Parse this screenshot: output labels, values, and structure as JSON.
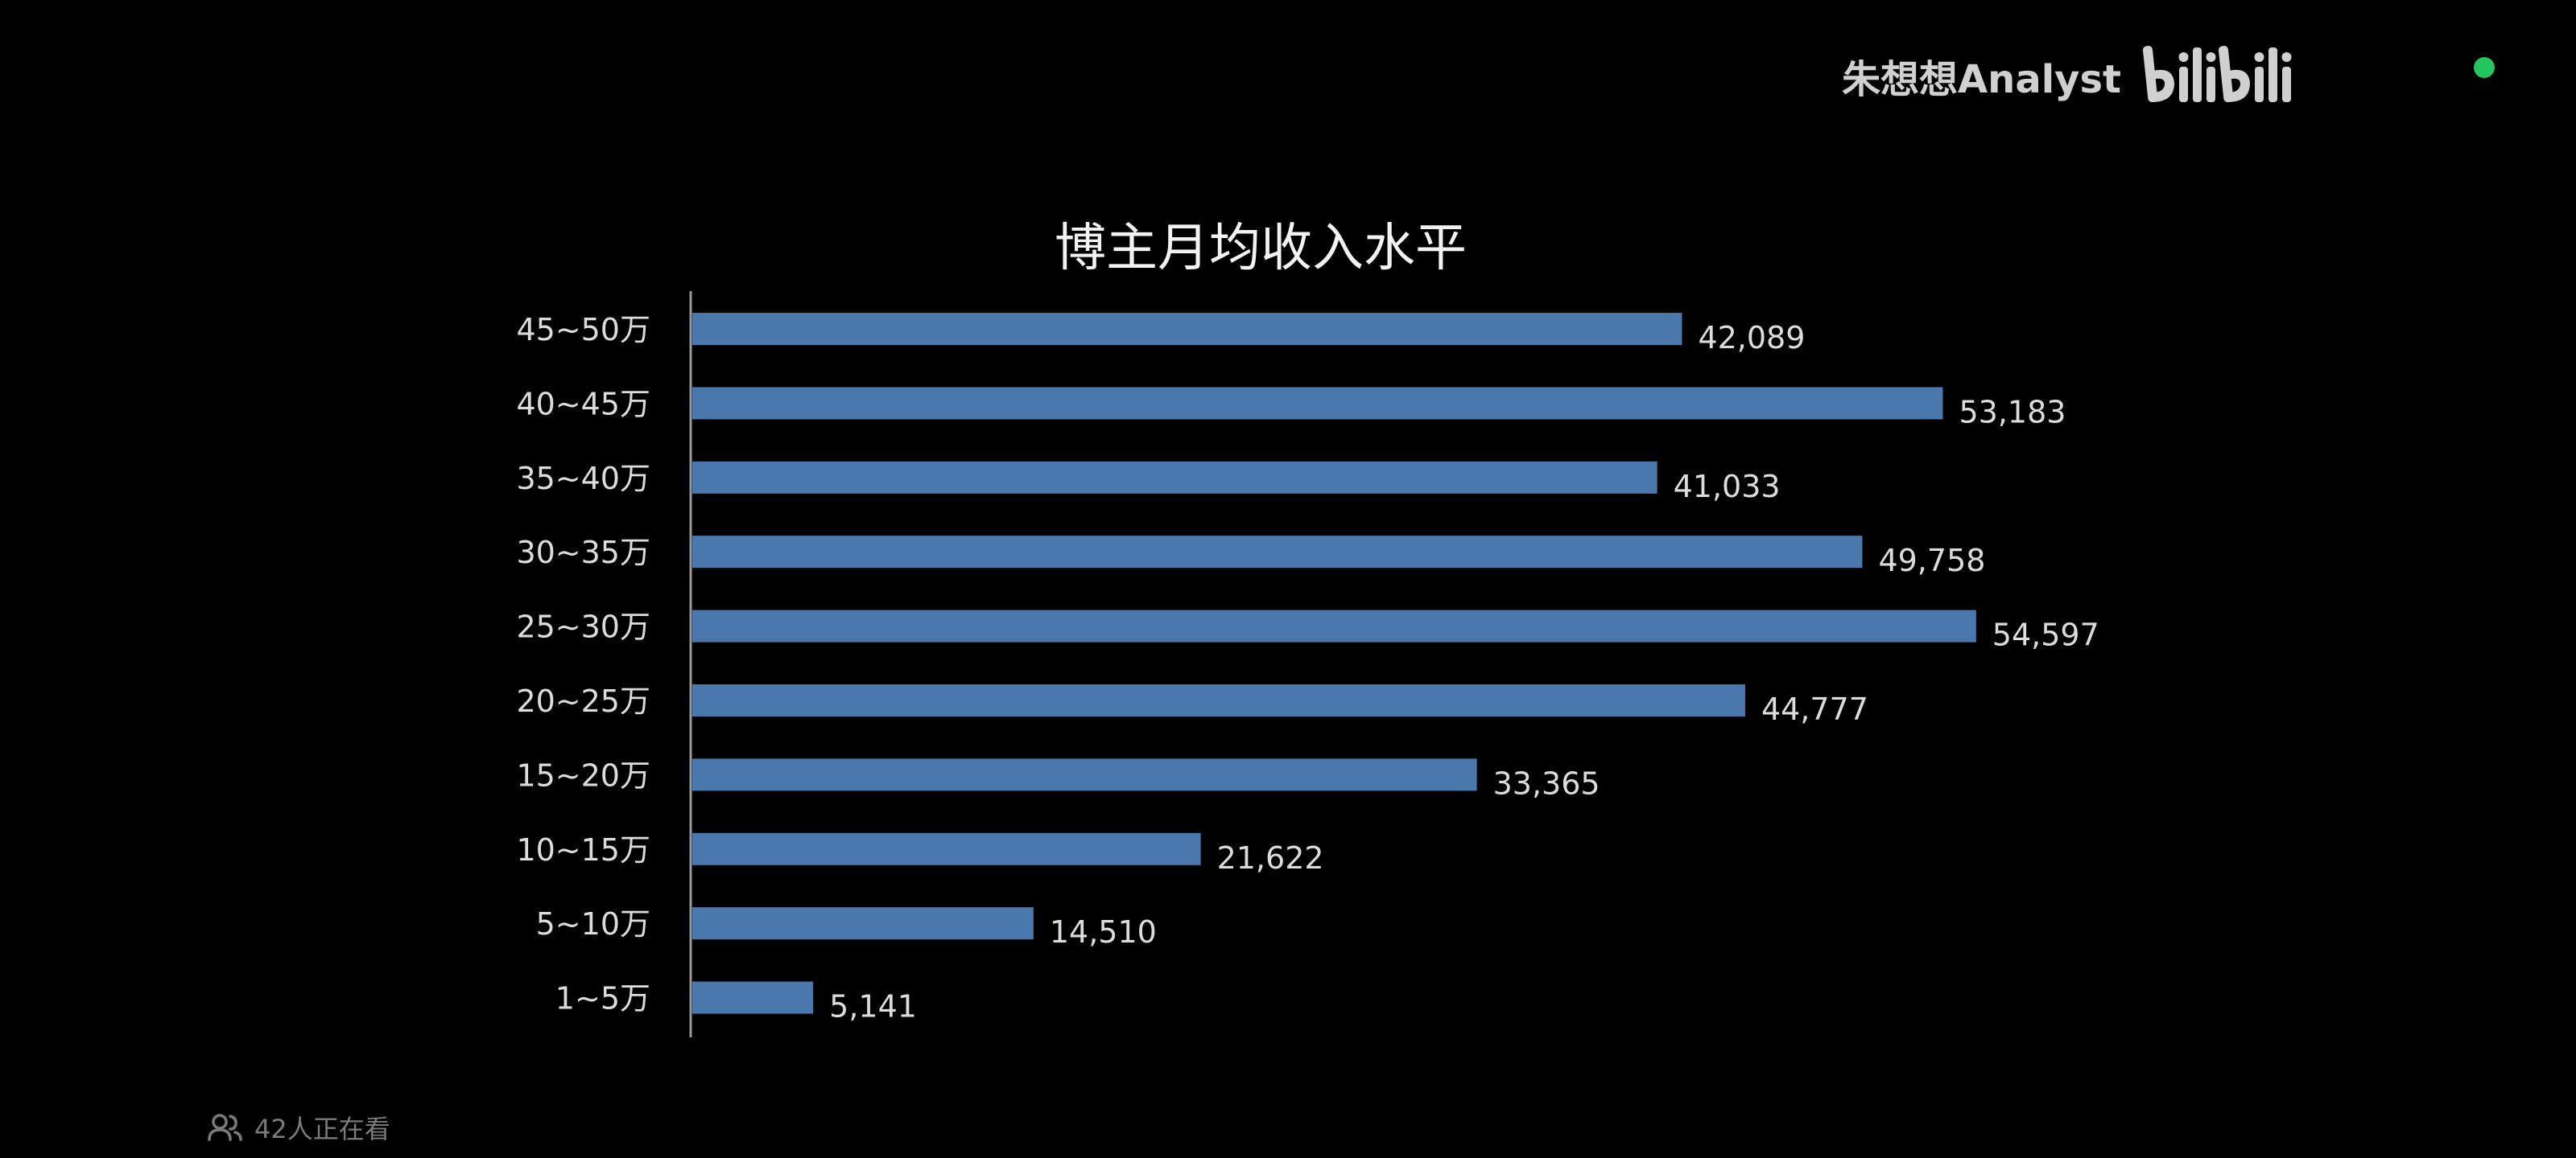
{
  "watermark": {
    "channel": "朱想想Analyst",
    "brand": "bilibili"
  },
  "colors": {
    "bar": "#4a78ad",
    "background": "#000000",
    "text": "#e6e6e6",
    "status_dot": "#22c55e"
  },
  "viewer": {
    "text": "42人正在看",
    "icon": "people-icon"
  },
  "chart_data": {
    "type": "bar",
    "orientation": "horizontal",
    "title": "博主月均收入水平",
    "xlabel": "",
    "ylabel": "",
    "categories": [
      "45~50万",
      "40~45万",
      "35~40万",
      "30~35万",
      "25~30万",
      "20~25万",
      "15~20万",
      "10~15万",
      "5~10万",
      "1~5万"
    ],
    "values": [
      42089,
      53183,
      41033,
      49758,
      54597,
      44777,
      33365,
      21622,
      14510,
      5141
    ],
    "data_labels": [
      "42,089",
      "53,183",
      "41,033",
      "49,758",
      "54,597",
      "44,777",
      "33,365",
      "21,622",
      "14,510",
      "5,141"
    ],
    "xlim": [
      0,
      57000
    ],
    "grid": false,
    "legend": "none"
  }
}
